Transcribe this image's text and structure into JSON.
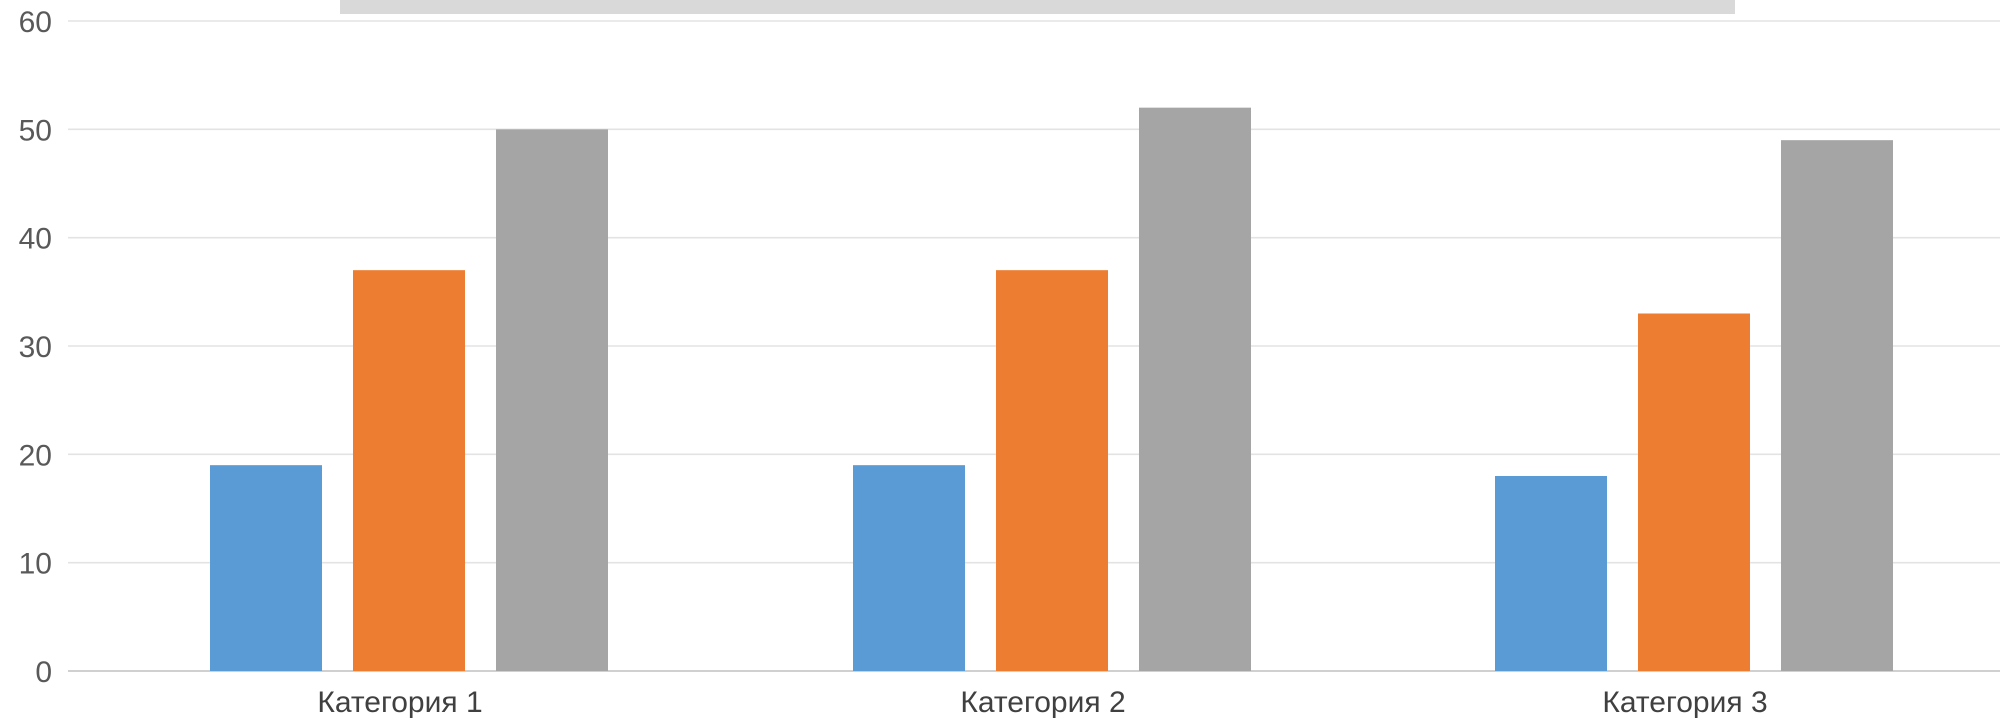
{
  "chart_data": {
    "type": "bar",
    "title": "",
    "xlabel": "",
    "ylabel": "",
    "categories": [
      "Категория 1",
      "Категория 2",
      "Категория 3"
    ],
    "series": [
      {
        "values": [
          19,
          19,
          18
        ],
        "color": "#5b9bd5"
      },
      {
        "values": [
          37,
          37,
          33
        ],
        "color": "#ed7d31"
      },
      {
        "values": [
          50,
          52,
          49
        ],
        "color": "#a5a5a5"
      }
    ],
    "ylim": [
      0,
      60
    ],
    "yticks": [
      0,
      10,
      20,
      30,
      40,
      50,
      60
    ],
    "grid": true,
    "legend": "none"
  }
}
